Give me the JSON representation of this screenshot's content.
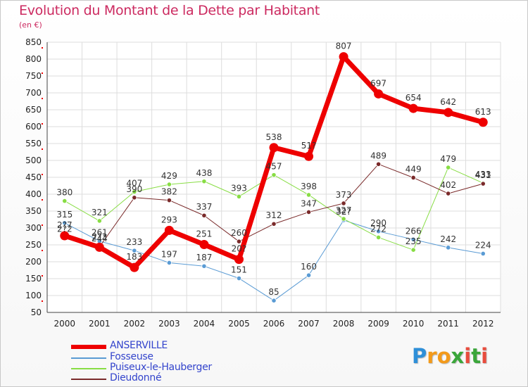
{
  "title": "Evolution du Montant de la Dette par Habitant",
  "subtitle": "(en €)",
  "logo": {
    "letters": [
      "P",
      "r",
      "o",
      "x",
      "i",
      "t",
      "i"
    ],
    "colors": [
      "#2e8fd8",
      "#f39a1a",
      "#f39a1a",
      "#3aa63a",
      "#e84c3d",
      "#3aa63a",
      "#e84c3d"
    ]
  },
  "chart_data": {
    "type": "line",
    "x": [
      "2000",
      "2001",
      "2002",
      "2003",
      "2004",
      "2005",
      "2006",
      "2007",
      "2008",
      "2009",
      "2010",
      "2011",
      "2012"
    ],
    "ylim": [
      50,
      850
    ],
    "yticks": [
      50,
      100,
      150,
      200,
      250,
      300,
      350,
      400,
      450,
      500,
      550,
      600,
      650,
      700,
      750,
      800,
      850
    ],
    "grid": true,
    "legend_position": "bottom-left",
    "series": [
      {
        "name": "ANSERVILLE",
        "color": "#ee0000",
        "width": 7,
        "values": [
          277,
          243,
          183,
          293,
          251,
          207,
          538,
          512,
          807,
          697,
          654,
          642,
          613
        ],
        "labels": [
          "2?7",
          "2?3",
          "183",
          "293",
          "251",
          "20?",
          "538",
          "51?",
          "807",
          "697",
          "654",
          "642",
          "613"
        ]
      },
      {
        "name": "Fosseuse",
        "color": "#5a9bd4",
        "width": 1,
        "values": [
          315,
          261,
          233,
          197,
          187,
          151,
          85,
          160,
          323,
          290,
          266,
          242,
          224
        ],
        "labels": [
          "315",
          "261",
          "233",
          "197",
          "187",
          "151",
          "85",
          "160",
          "32?",
          "290",
          "266",
          "242",
          "224"
        ]
      },
      {
        "name": "Puiseux-le-Hauberger",
        "color": "#88dd44",
        "width": 1,
        "values": [
          380,
          321,
          407,
          429,
          438,
          393,
          457,
          398,
          327,
          272,
          235,
          479,
          433
        ],
        "labels": [
          "380",
          "321",
          "407",
          "429",
          "438",
          "393",
          "457",
          "398",
          "327",
          "272",
          "235",
          "479",
          "433"
        ]
      },
      {
        "name": "Dieudonné",
        "color": "#7a2a2a",
        "width": 1,
        "values": [
          272,
          244,
          390,
          382,
          337,
          260,
          312,
          347,
          373,
          489,
          449,
          402,
          431
        ],
        "labels": [
          "2?2",
          "244",
          "390",
          "382",
          "337",
          "260",
          "312",
          "347",
          "373",
          "489",
          "449",
          "402",
          "431"
        ]
      }
    ]
  }
}
